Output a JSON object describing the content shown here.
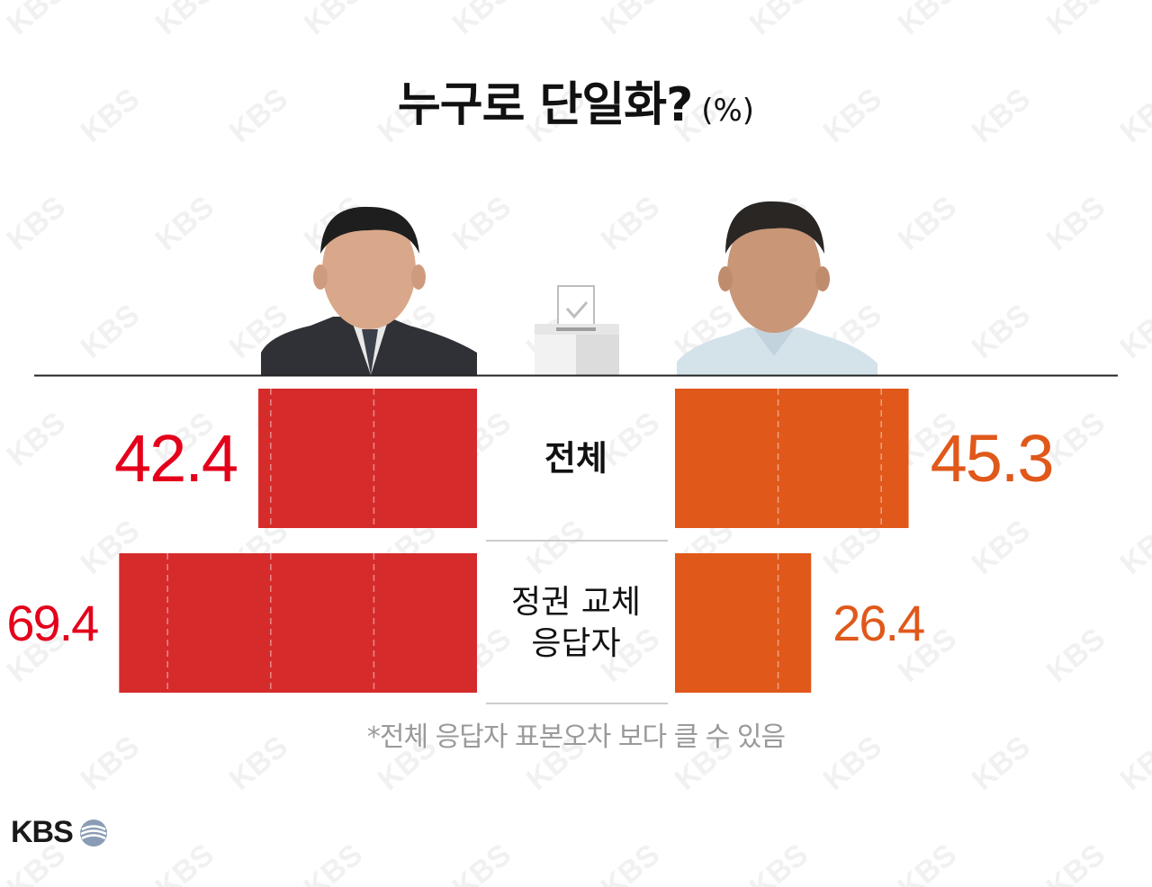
{
  "header": {
    "title": "누구로 단일화?",
    "unit": "(%)"
  },
  "chart_data": {
    "type": "bar",
    "categories": [
      "전체",
      "정권 교체 응답자"
    ],
    "category_lines": [
      [
        "전체"
      ],
      [
        "정권 교체",
        "응답자"
      ]
    ],
    "series": [
      {
        "values": [
          42.4,
          69.4
        ],
        "color": "#d62b2b",
        "label_color": "#e4001b"
      },
      {
        "values": [
          45.3,
          26.4
        ],
        "color": "#e0581a",
        "label_color": "#e0581a"
      }
    ]
  },
  "footnote": "*전체 응답자 표본오차 보다 클 수 있음",
  "logo": {
    "text": "KBS"
  }
}
